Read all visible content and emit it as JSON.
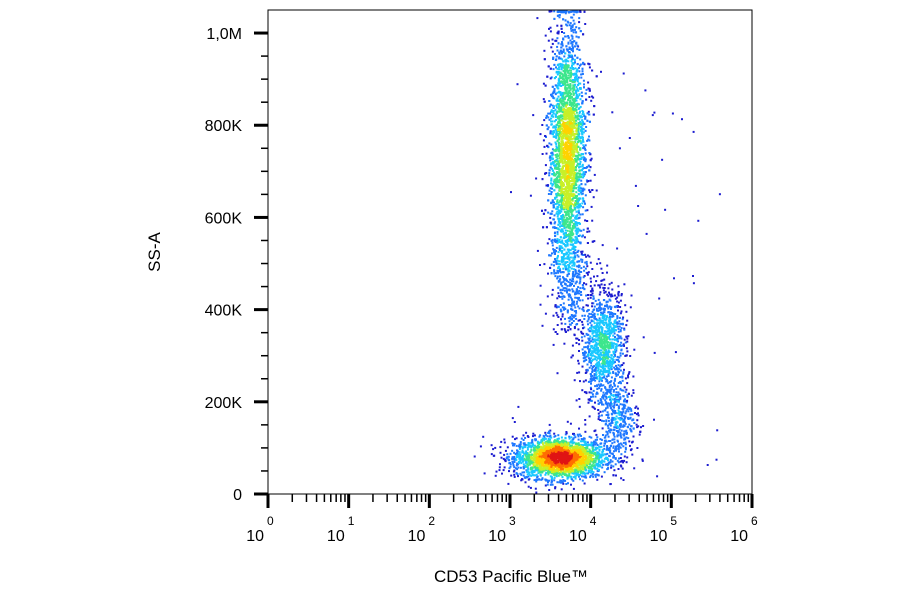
{
  "chart_data": {
    "type": "scatter",
    "subtype": "flow-cytometry-density-dot-plot",
    "xlabel": "CD53 Pacific Blue™",
    "ylabel": "SS-A",
    "x_scale": "log",
    "xlim": [
      1,
      1000000
    ],
    "ylim": [
      0,
      1050000
    ],
    "x_ticks": [
      {
        "base": "10",
        "exp": "0",
        "value": 1
      },
      {
        "base": "10",
        "exp": "1",
        "value": 10
      },
      {
        "base": "10",
        "exp": "2",
        "value": 100
      },
      {
        "base": "10",
        "exp": "3",
        "value": 1000
      },
      {
        "base": "10",
        "exp": "4",
        "value": 10000
      },
      {
        "base": "10",
        "exp": "5",
        "value": 100000
      },
      {
        "base": "10",
        "exp": "6",
        "value": 1000000
      }
    ],
    "y_ticks": [
      {
        "label": "0",
        "value": 0
      },
      {
        "label": "200K",
        "value": 200000
      },
      {
        "label": "400K",
        "value": 400000
      },
      {
        "label": "600K",
        "value": 600000
      },
      {
        "label": "800K",
        "value": 800000
      },
      {
        "label": "1,0M",
        "value": 1000000
      }
    ],
    "grid": false,
    "legend": "none",
    "density_colormap": [
      "#1c1cd0",
      "#1e78ff",
      "#19c8ff",
      "#3ce68c",
      "#c8f028",
      "#ffd200",
      "#ff6e00",
      "#e01414"
    ],
    "populations": [
      {
        "center_x": 4000,
        "center_y": 80000,
        "spread_log_x": 0.28,
        "spread_y": 22000,
        "events": 2600
      },
      {
        "center_x": 5000,
        "center_y": 740000,
        "spread_log_x": 0.11,
        "spread_y": 140000,
        "events": 3800
      },
      {
        "center_x": 14000,
        "center_y": 320000,
        "spread_log_x": 0.14,
        "spread_y": 65000,
        "events": 1100
      },
      {
        "center_x": 22000,
        "center_y": 160000,
        "spread_log_x": 0.12,
        "spread_y": 40000,
        "events": 350
      },
      {
        "center_x": 5500,
        "center_y": 470000,
        "spread_log_x": 0.12,
        "spread_y": 60000,
        "events": 250
      }
    ]
  }
}
